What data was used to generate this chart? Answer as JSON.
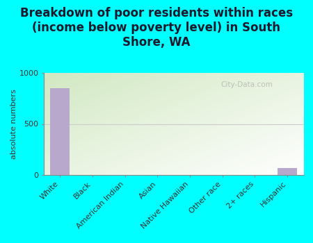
{
  "title": "Breakdown of poor residents within races\n(income below poverty level) in South\nShore, WA",
  "ylabel": "absolute numbers",
  "categories": [
    "White",
    "Black",
    "American Indian",
    "Asian",
    "Native Hawaiian",
    "Other race",
    "2+ races",
    "Hispanic"
  ],
  "values": [
    850,
    0,
    0,
    0,
    0,
    3,
    0,
    70
  ],
  "bar_color": "#b8a8cc",
  "ylim": [
    0,
    1000
  ],
  "yticks": [
    0,
    500,
    1000
  ],
  "background_color": "#00ffff",
  "plot_bg_color_topleft": "#d4e8c8",
  "plot_bg_color_topright": "#dce8e0",
  "plot_bg_color_bottom": "#f0f5ee",
  "title_fontsize": 12,
  "label_fontsize": 8,
  "watermark": "City-Data.com",
  "title_color": "#1a1a2e",
  "grid_color": "#e0e8d8"
}
